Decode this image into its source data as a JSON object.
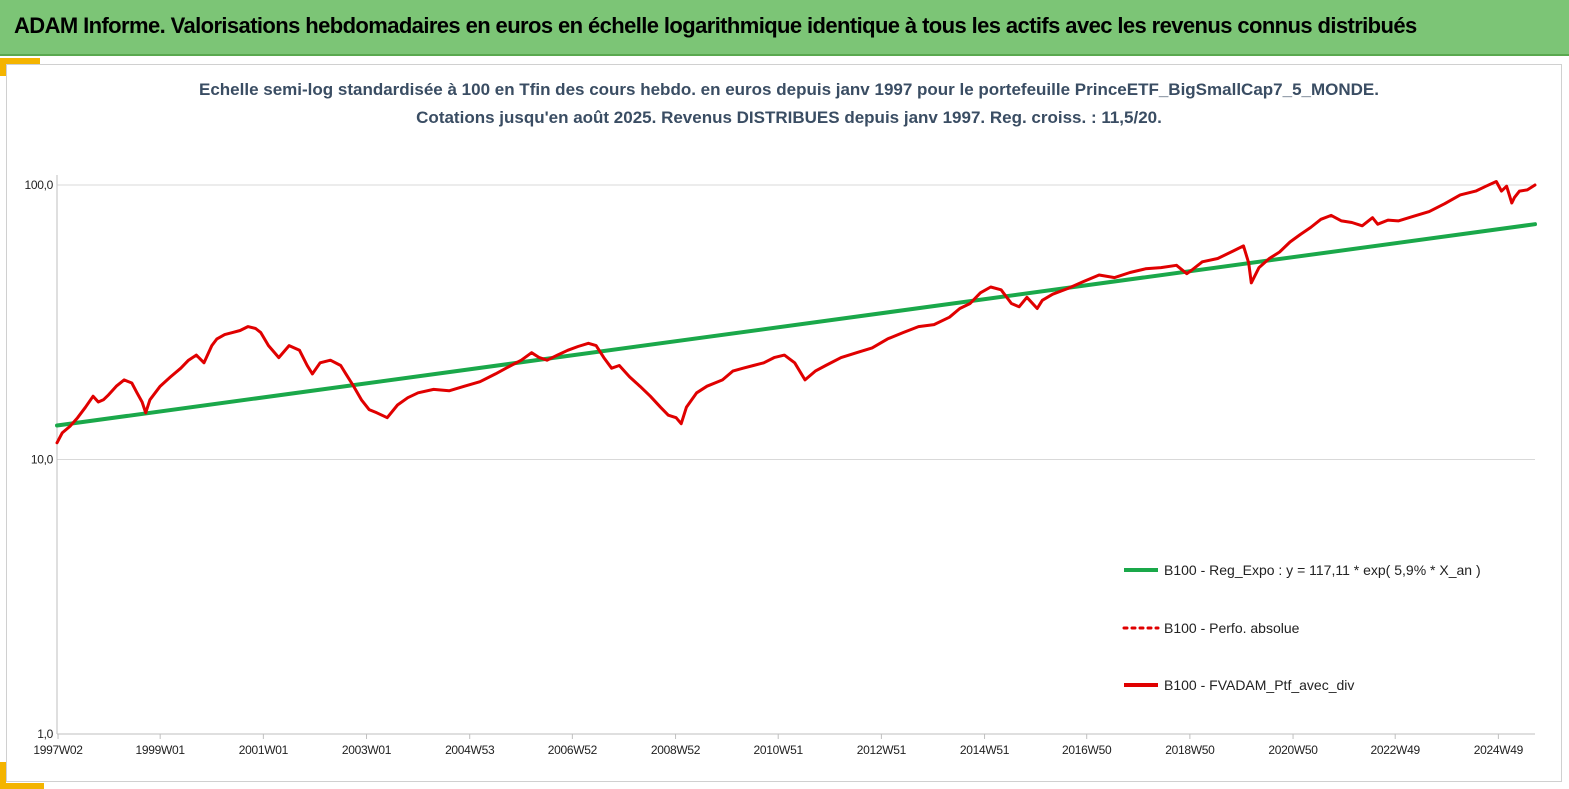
{
  "header": {
    "title": "ADAM Informe. Valorisations hebdomadaires en euros en échelle logarithmique identique à tous les actifs avec les revenus connus distribués",
    "bg_color": "#7cc576",
    "corner_color": "#f4b400"
  },
  "chart_data": {
    "type": "line",
    "title": [
      "Echelle semi-log standardisée à 100 en Tfin des cours hebdo.  en euros depuis janv 1997 pour le portefeuille PrinceETF_BigSmallCap7_5_MONDE.",
      "Cotations jusqu'en août 2025. Revenus DISTRIBUES depuis janv 1997. Reg. croiss. : 11,5/20."
    ],
    "xlabel": "",
    "ylabel": "",
    "y_scale": "log",
    "ylim": [
      1,
      100
    ],
    "xlim": [
      1997.0,
      2025.65
    ],
    "grid": "horizontal",
    "legend_position": "bottom-right",
    "y_ticks": [
      {
        "value": 1,
        "label": "1,0"
      },
      {
        "value": 10,
        "label": "10,0"
      },
      {
        "value": 100,
        "label": "100,0"
      }
    ],
    "x_ticks": [
      {
        "value": 1997.02,
        "label": "1997W02"
      },
      {
        "value": 1999.0,
        "label": "1999W01"
      },
      {
        "value": 2001.0,
        "label": "2001W01"
      },
      {
        "value": 2003.0,
        "label": "2003W01"
      },
      {
        "value": 2005.0,
        "label": "2004W53"
      },
      {
        "value": 2006.99,
        "label": "2006W52"
      },
      {
        "value": 2008.99,
        "label": "2008W52"
      },
      {
        "value": 2010.98,
        "label": "2010W51"
      },
      {
        "value": 2012.98,
        "label": "2012W51"
      },
      {
        "value": 2014.98,
        "label": "2014W51"
      },
      {
        "value": 2016.96,
        "label": "2016W50"
      },
      {
        "value": 2018.96,
        "label": "2018W50"
      },
      {
        "value": 2020.96,
        "label": "2020W50"
      },
      {
        "value": 2022.94,
        "label": "2022W49"
      },
      {
        "value": 2024.94,
        "label": "2024W49"
      }
    ],
    "series": [
      {
        "name": "B100 - Reg_Expo : y = 117,11 * exp( 5,9% *  X_an )",
        "color": "#1aa84a",
        "style": "solid",
        "x": [
          1997.0,
          2025.65
        ],
        "values": [
          13.3,
          72.0
        ]
      },
      {
        "name": "B100 - Perfo. absolue",
        "color": "#e00000",
        "style": "dotted",
        "x": [],
        "values": []
      },
      {
        "name": "B100 - FVADAM_Ptf_avec_div",
        "color": "#e00000",
        "style": "solid",
        "x": [
          1997.0,
          1997.1,
          1997.25,
          1997.4,
          1997.55,
          1997.7,
          1997.8,
          1997.9,
          1998.0,
          1998.15,
          1998.3,
          1998.45,
          1998.55,
          1998.65,
          1998.72,
          1998.8,
          1999.0,
          1999.2,
          1999.4,
          1999.55,
          1999.7,
          1999.85,
          2000.0,
          2000.1,
          2000.25,
          2000.4,
          2000.55,
          2000.7,
          2000.85,
          2000.95,
          2001.1,
          2001.3,
          2001.5,
          2001.7,
          2001.85,
          2001.95,
          2002.1,
          2002.3,
          2002.5,
          2002.6,
          2002.75,
          2002.9,
          2003.05,
          2003.2,
          2003.4,
          2003.6,
          2003.8,
          2004.0,
          2004.3,
          2004.6,
          2004.9,
          2005.2,
          2005.5,
          2005.8,
          2006.0,
          2006.2,
          2006.35,
          2006.5,
          2006.7,
          2006.9,
          2007.1,
          2007.3,
          2007.45,
          2007.6,
          2007.75,
          2007.9,
          2008.1,
          2008.3,
          2008.5,
          2008.7,
          2008.85,
          2009.0,
          2009.1,
          2009.2,
          2009.4,
          2009.6,
          2009.9,
          2010.1,
          2010.3,
          2010.5,
          2010.7,
          2010.9,
          2011.1,
          2011.3,
          2011.5,
          2011.7,
          2011.9,
          2012.2,
          2012.5,
          2012.8,
          2013.1,
          2013.4,
          2013.7,
          2014.0,
          2014.3,
          2014.5,
          2014.7,
          2014.9,
          2015.1,
          2015.3,
          2015.5,
          2015.65,
          2015.8,
          2016.0,
          2016.1,
          2016.3,
          2016.6,
          2016.9,
          2017.2,
          2017.5,
          2017.8,
          2018.1,
          2018.4,
          2018.7,
          2018.9,
          2019.0,
          2019.2,
          2019.5,
          2019.8,
          2020.0,
          2020.1,
          2020.15,
          2020.3,
          2020.5,
          2020.7,
          2020.9,
          2021.1,
          2021.3,
          2021.5,
          2021.7,
          2021.9,
          2022.1,
          2022.3,
          2022.5,
          2022.6,
          2022.8,
          2023.0,
          2023.3,
          2023.6,
          2023.9,
          2024.2,
          2024.5,
          2024.7,
          2024.9,
          2025.0,
          2025.1,
          2025.2,
          2025.25,
          2025.35,
          2025.5,
          2025.65
        ],
        "values": [
          11.5,
          12.5,
          13.2,
          14.2,
          15.5,
          17.0,
          16.2,
          16.5,
          17.2,
          18.5,
          19.5,
          19.0,
          17.5,
          16.2,
          14.8,
          16.5,
          18.5,
          20.0,
          21.5,
          23.0,
          24.0,
          22.5,
          26.0,
          27.5,
          28.5,
          29.0,
          29.5,
          30.5,
          30.0,
          29.0,
          26.0,
          23.5,
          26.0,
          25.0,
          22.0,
          20.5,
          22.5,
          23.0,
          22.0,
          20.5,
          18.5,
          16.5,
          15.2,
          14.8,
          14.2,
          15.8,
          16.8,
          17.5,
          18.0,
          17.8,
          18.5,
          19.2,
          20.5,
          22.0,
          23.0,
          24.5,
          23.5,
          23.0,
          24.0,
          25.0,
          25.8,
          26.5,
          26.0,
          23.5,
          21.5,
          22.0,
          20.0,
          18.5,
          17.0,
          15.5,
          14.5,
          14.2,
          13.5,
          15.5,
          17.5,
          18.5,
          19.5,
          21.0,
          21.5,
          22.0,
          22.5,
          23.5,
          24.0,
          22.5,
          19.5,
          21.0,
          22.0,
          23.5,
          24.5,
          25.5,
          27.5,
          29.0,
          30.5,
          31.0,
          33.0,
          35.5,
          37.0,
          40.5,
          42.5,
          41.5,
          37.0,
          36.0,
          39.0,
          35.5,
          38.0,
          40.0,
          42.0,
          44.5,
          47.0,
          46.0,
          48.0,
          49.5,
          50.0,
          51.0,
          47.5,
          49.0,
          52.5,
          54.0,
          57.5,
          60.0,
          52.0,
          44.0,
          50.0,
          54.0,
          57.0,
          62.0,
          66.0,
          70.0,
          75.0,
          77.5,
          74.0,
          73.0,
          71.0,
          76.0,
          72.0,
          74.5,
          74.0,
          77.0,
          80.0,
          85.5,
          92.0,
          95.0,
          99.0,
          103.0,
          95.0,
          99.0,
          86.0,
          90.0,
          95.0,
          96.0,
          100.0
        ]
      }
    ]
  }
}
